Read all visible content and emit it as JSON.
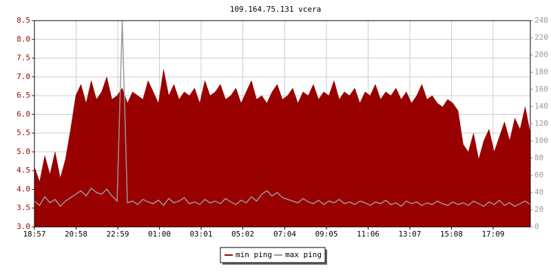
{
  "chart_data": {
    "type": "area",
    "title": "109.164.75.131 vcera",
    "x": [
      0,
      15,
      30,
      45,
      60,
      75,
      90,
      105,
      120,
      135,
      150,
      165,
      180,
      195,
      210,
      225,
      240,
      255,
      270,
      285,
      300,
      315,
      330,
      345,
      360,
      375,
      390,
      405,
      420,
      435,
      450,
      465,
      480,
      495,
      510,
      525,
      540,
      555,
      570,
      585,
      600,
      615,
      630,
      645,
      660,
      675,
      690,
      705,
      720,
      735,
      750,
      765,
      780,
      795,
      810,
      825,
      840,
      855,
      870,
      885,
      900,
      915,
      930,
      945,
      960,
      975,
      990,
      1005,
      1020,
      1035,
      1050,
      1065,
      1080,
      1095,
      1110,
      1125,
      1140,
      1155,
      1170,
      1185,
      1200,
      1215,
      1230,
      1245,
      1260,
      1275,
      1290,
      1305,
      1320,
      1335,
      1350,
      1365,
      1380,
      1395,
      1410,
      1425,
      1440
    ],
    "xlim": [
      0,
      1440
    ],
    "xticks": [
      {
        "value": 0,
        "label": "18:57"
      },
      {
        "value": 121,
        "label": "20:58"
      },
      {
        "value": 242,
        "label": "22:59"
      },
      {
        "value": 363,
        "label": "01:00"
      },
      {
        "value": 484,
        "label": "03:01"
      },
      {
        "value": 605,
        "label": "05:02"
      },
      {
        "value": 727,
        "label": "07:04"
      },
      {
        "value": 848,
        "label": "09:05"
      },
      {
        "value": 969,
        "label": "11:06"
      },
      {
        "value": 1090,
        "label": "13:07"
      },
      {
        "value": 1211,
        "label": "15:08"
      },
      {
        "value": 1332,
        "label": "17:09"
      }
    ],
    "ylim": [
      3,
      8.5
    ],
    "yticks": [
      {
        "value": 3,
        "label": "3.0"
      },
      3.5,
      {
        "value": 4,
        "label": "4.0"
      },
      4.5,
      {
        "value": 5,
        "label": "5.0"
      },
      5.5,
      {
        "value": 6,
        "label": "6.0"
      },
      6.5,
      {
        "value": 7,
        "label": "7.0"
      },
      7.5,
      {
        "value": 8,
        "label": "8.0"
      },
      8.5
    ],
    "y2lim": [
      0,
      240
    ],
    "y2ticks": [
      0,
      20,
      40,
      60,
      80,
      100,
      120,
      140,
      160,
      180,
      200,
      220,
      240
    ],
    "grid": true,
    "series": [
      {
        "name": "min ping",
        "color": "#990000",
        "fill": true,
        "values": [
          4.6,
          4.2,
          4.9,
          4.4,
          5.0,
          4.3,
          4.8,
          5.6,
          6.5,
          6.8,
          6.3,
          6.9,
          6.4,
          6.6,
          7.0,
          6.4,
          6.5,
          6.7,
          6.3,
          6.6,
          6.5,
          6.4,
          6.9,
          6.6,
          6.3,
          7.2,
          6.5,
          6.8,
          6.4,
          6.6,
          6.5,
          6.7,
          6.3,
          6.9,
          6.5,
          6.6,
          6.8,
          6.4,
          6.5,
          6.7,
          6.3,
          6.6,
          6.9,
          6.4,
          6.5,
          6.3,
          6.6,
          6.8,
          6.4,
          6.5,
          6.7,
          6.3,
          6.6,
          6.5,
          6.8,
          6.4,
          6.6,
          6.5,
          6.9,
          6.4,
          6.6,
          6.5,
          6.7,
          6.3,
          6.6,
          6.5,
          6.8,
          6.4,
          6.6,
          6.5,
          6.7,
          6.4,
          6.6,
          6.3,
          6.5,
          6.8,
          6.4,
          6.5,
          6.3,
          6.2,
          6.4,
          6.3,
          6.1,
          5.2,
          5.0,
          5.5,
          4.8,
          5.3,
          5.6,
          5.0,
          5.4,
          5.8,
          5.3,
          5.9,
          5.6,
          6.2,
          5.5
        ]
      },
      {
        "name": "max ping",
        "color": "#999999",
        "axis": "y2",
        "fill": false,
        "values": [
          30,
          25,
          35,
          28,
          32,
          24,
          30,
          34,
          38,
          42,
          36,
          45,
          40,
          38,
          44,
          36,
          30,
          240,
          28,
          30,
          26,
          32,
          29,
          27,
          31,
          25,
          33,
          28,
          30,
          34,
          27,
          29,
          26,
          32,
          28,
          30,
          27,
          33,
          29,
          26,
          31,
          28,
          35,
          30,
          38,
          42,
          36,
          40,
          34,
          32,
          30,
          28,
          33,
          29,
          27,
          31,
          26,
          30,
          28,
          32,
          27,
          29,
          26,
          30,
          28,
          25,
          29,
          27,
          31,
          26,
          28,
          24,
          30,
          27,
          29,
          25,
          28,
          26,
          30,
          27,
          25,
          29,
          26,
          28,
          25,
          30,
          27,
          24,
          29,
          26,
          31,
          25,
          28,
          24,
          27,
          30,
          26
        ]
      }
    ],
    "legend": "bottom"
  }
}
